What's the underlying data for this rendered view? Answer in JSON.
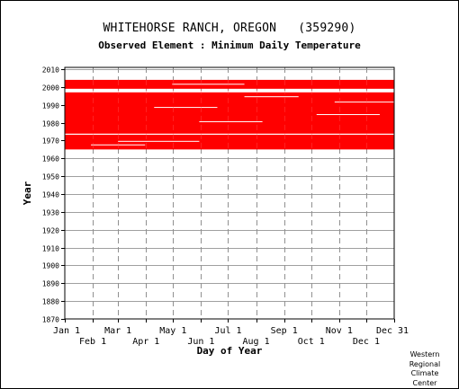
{
  "header": {
    "title": "WHITEHORSE RANCH, OREGON   (359290)",
    "subtitle": "Observed Element : Minimum Daily Temperature"
  },
  "credit": [
    "Western",
    "Regional",
    "Climate",
    "Center"
  ],
  "chart_data": {
    "type": "heatmap",
    "title": "WHITEHORSE RANCH, OREGON   (359290)",
    "subtitle": "Observed Element : Minimum Daily Temperature",
    "xlabel": "Day of Year",
    "ylabel": "Year",
    "x_ticks_upper": [
      "Jan 1",
      "Mar 1",
      "May 1",
      "Jul 1",
      "Sep 1",
      "Nov 1",
      "Dec 31"
    ],
    "x_ticks_lower": [
      "Feb 1",
      "Apr 1",
      "Jun 1",
      "Aug 1",
      "Oct 1",
      "Dec 1"
    ],
    "y_ticks": [
      2010,
      2000,
      1990,
      1980,
      1970,
      1960,
      1950,
      1940,
      1930,
      1920,
      1910,
      1900,
      1890,
      1880,
      1870
    ],
    "ylim": [
      1870,
      2011
    ],
    "xlim": [
      1,
      366
    ],
    "grid": true,
    "data_color": "#ff0000",
    "observed_ranges": [
      {
        "from": 1965,
        "to": 1996
      },
      {
        "from": 1999,
        "to": 2003
      }
    ],
    "missing_years": [
      1973
    ],
    "missing_segments": [
      {
        "year": 1967,
        "from": 30,
        "to": 90
      },
      {
        "year": 1969,
        "from": 60,
        "to": 150
      },
      {
        "year": 1980,
        "from": 150,
        "to": 220
      },
      {
        "year": 1984,
        "from": 280,
        "to": 350
      },
      {
        "year": 1988,
        "from": 100,
        "to": 170
      },
      {
        "year": 1991,
        "from": 300,
        "to": 366
      },
      {
        "year": 1994,
        "from": 200,
        "to": 260
      },
      {
        "year": 2001,
        "from": 120,
        "to": 200
      }
    ]
  }
}
